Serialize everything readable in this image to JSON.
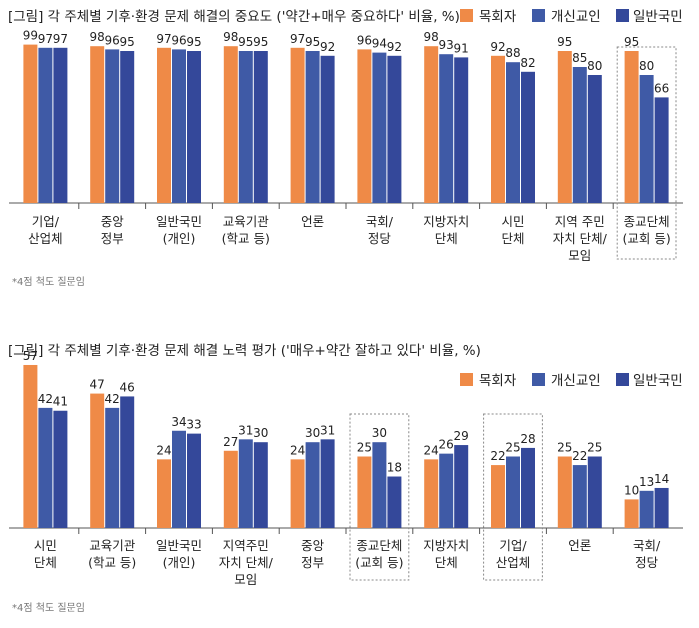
{
  "colors": {
    "series": [
      "#ef8a47",
      "#3f5aa6",
      "#34489a"
    ],
    "box": "#888888",
    "axis": "#555555"
  },
  "chart_data": [
    {
      "type": "bar",
      "title": "[그림] 각 주체별 기후·환경 문제 해결의 중요도 ('약간+매우 중요하다' 비율, %)",
      "legend": [
        "목회자",
        "개신교인",
        "일반국민"
      ],
      "legend_position": "top-right",
      "categories": [
        [
          "기업/",
          "산업체"
        ],
        [
          "중앙",
          "정부"
        ],
        [
          "일반국민",
          "(개인)"
        ],
        [
          "교육기관",
          "(학교 등)"
        ],
        [
          "언론"
        ],
        [
          "국회/",
          "정당"
        ],
        [
          "지방자치",
          "단체"
        ],
        [
          "시민",
          "단체"
        ],
        [
          "지역 주민",
          "자치 단체/",
          "모임"
        ],
        [
          "종교단체",
          "(교회 등)"
        ]
      ],
      "series": [
        {
          "name": "목회자",
          "values": [
            99,
            98,
            97,
            98,
            97,
            96,
            98,
            92,
            95,
            95
          ]
        },
        {
          "name": "개신교인",
          "values": [
            97,
            96,
            96,
            95,
            95,
            94,
            93,
            88,
            85,
            80
          ]
        },
        {
          "name": "일반국민",
          "values": [
            97,
            95,
            95,
            95,
            92,
            92,
            91,
            82,
            80,
            66
          ]
        }
      ],
      "highlight_index": 9,
      "note": "*4점 척도 질문임",
      "grid": false
    },
    {
      "type": "bar",
      "title": "[그림] 각 주체별 기후·환경 문제 해결 노력 평가 ('매우+약간 잘하고 있다' 비율, %)",
      "legend": [
        "목회자",
        "개신교인",
        "일반국민"
      ],
      "legend_position": "top-right",
      "categories": [
        [
          "시민",
          "단체"
        ],
        [
          "교육기관",
          "(학교 등)"
        ],
        [
          "일반국민",
          "(개인)"
        ],
        [
          "지역주민",
          "자치 단체/",
          "모임"
        ],
        [
          "중앙",
          "정부"
        ],
        [
          "종교단체",
          "(교회 등)"
        ],
        [
          "지방자치",
          "단체"
        ],
        [
          "기업/",
          "산업체"
        ],
        [
          "언론"
        ],
        [
          "국회/",
          "정당"
        ]
      ],
      "series": [
        {
          "name": "목회자",
          "values": [
            57,
            47,
            24,
            27,
            24,
            25,
            24,
            22,
            25,
            10
          ]
        },
        {
          "name": "개신교인",
          "values": [
            42,
            42,
            34,
            31,
            30,
            30,
            26,
            25,
            22,
            13
          ]
        },
        {
          "name": "일반국민",
          "values": [
            41,
            46,
            33,
            30,
            31,
            18,
            29,
            28,
            25,
            14
          ]
        }
      ],
      "highlight_index": [
        5,
        7
      ],
      "note": "*4점 척도 질문임",
      "grid": false
    }
  ]
}
